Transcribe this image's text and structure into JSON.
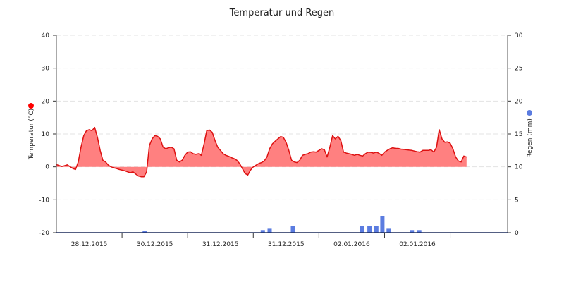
{
  "chart_data": {
    "type": "line",
    "title": "Temperatur und Regen",
    "y_left": {
      "label": "Temperatur (°C)",
      "ticks": [
        40,
        30,
        20,
        10,
        0,
        -10,
        -20
      ],
      "range": [
        -20,
        40
      ],
      "marker_color": "#ff0000"
    },
    "y_right": {
      "label": "Regen (mm)",
      "ticks": [
        30,
        25,
        20,
        15,
        10,
        5,
        0
      ],
      "range": [
        0,
        30
      ],
      "marker_color": "#5b7ce0"
    },
    "x": {
      "range_hours": [
        0,
        165
      ],
      "tick_labels": [
        "28.12.2015",
        "30.12.2015",
        "31.12.2015",
        "31.12.2015",
        "02.01.2016",
        "02.01.2016"
      ],
      "tick_positions_hours": [
        12,
        36,
        60,
        84,
        108,
        132
      ],
      "separator_positions_hours": [
        24,
        48,
        72,
        96,
        120,
        144
      ]
    },
    "grid": "horizontal dashed",
    "series": [
      {
        "name": "Temperatur (°C)",
        "kind": "area",
        "color": "#dd1111",
        "fill": "#ff8080",
        "points": [
          [
            0,
            0.7
          ],
          [
            2,
            0.1
          ],
          [
            4,
            0.6
          ],
          [
            6,
            -0.5
          ],
          [
            7,
            -0.8
          ],
          [
            8,
            1.5
          ],
          [
            9,
            6
          ],
          [
            10,
            9.5
          ],
          [
            11,
            11
          ],
          [
            12,
            11.3
          ],
          [
            13,
            11
          ],
          [
            14,
            12
          ],
          [
            15,
            9
          ],
          [
            16,
            5
          ],
          [
            17,
            2
          ],
          [
            18,
            1.5
          ],
          [
            19,
            0.5
          ],
          [
            20,
            0
          ],
          [
            21,
            -0.3
          ],
          [
            22,
            -0.5
          ],
          [
            23,
            -0.8
          ],
          [
            24,
            -1
          ],
          [
            25,
            -1.2
          ],
          [
            26,
            -1.5
          ],
          [
            27,
            -1.8
          ],
          [
            28,
            -1.5
          ],
          [
            29,
            -2.2
          ],
          [
            30,
            -2.8
          ],
          [
            31,
            -3
          ],
          [
            32,
            -3
          ],
          [
            33,
            -1.5
          ],
          [
            34,
            6.5
          ],
          [
            35,
            8.5
          ],
          [
            36,
            9.5
          ],
          [
            37,
            9.3
          ],
          [
            38,
            8.5
          ],
          [
            39,
            6
          ],
          [
            40,
            5.5
          ],
          [
            41,
            5.8
          ],
          [
            42,
            6
          ],
          [
            43,
            5.5
          ],
          [
            44,
            2
          ],
          [
            45,
            1.5
          ],
          [
            46,
            2
          ],
          [
            47,
            3.5
          ],
          [
            48,
            4.5
          ],
          [
            49,
            4.6
          ],
          [
            50,
            4
          ],
          [
            51,
            3.8
          ],
          [
            52,
            4
          ],
          [
            53,
            3.5
          ],
          [
            54,
            7
          ],
          [
            55,
            11
          ],
          [
            56,
            11.2
          ],
          [
            57,
            10.5
          ],
          [
            58,
            8
          ],
          [
            59,
            6
          ],
          [
            60,
            5
          ],
          [
            61,
            4
          ],
          [
            62,
            3.5
          ],
          [
            63,
            3.2
          ],
          [
            64,
            2.8
          ],
          [
            65,
            2.5
          ],
          [
            66,
            2
          ],
          [
            67,
            1
          ],
          [
            68,
            -0.5
          ],
          [
            69,
            -2
          ],
          [
            70,
            -2.5
          ],
          [
            71,
            -1
          ],
          [
            72,
            0
          ],
          [
            73,
            0.5
          ],
          [
            74,
            1
          ],
          [
            75,
            1.3
          ],
          [
            76,
            1.8
          ],
          [
            77,
            3
          ],
          [
            78,
            5.5
          ],
          [
            79,
            7
          ],
          [
            80,
            7.8
          ],
          [
            81,
            8.5
          ],
          [
            82,
            9.2
          ],
          [
            83,
            9
          ],
          [
            84,
            7.5
          ],
          [
            85,
            5
          ],
          [
            86,
            2
          ],
          [
            87,
            1.5
          ],
          [
            88,
            1.3
          ],
          [
            89,
            2
          ],
          [
            90,
            3.5
          ],
          [
            91,
            3.8
          ],
          [
            92,
            4
          ],
          [
            93,
            4.5
          ],
          [
            94,
            4.6
          ],
          [
            95,
            4.5
          ],
          [
            96,
            5
          ],
          [
            97,
            5.5
          ],
          [
            98,
            5.2
          ],
          [
            99,
            3
          ],
          [
            100,
            6
          ],
          [
            101,
            9.5
          ],
          [
            102,
            8.5
          ],
          [
            103,
            9.3
          ],
          [
            104,
            8
          ],
          [
            105,
            4.5
          ],
          [
            106,
            4.2
          ],
          [
            107,
            4
          ],
          [
            108,
            3.8
          ],
          [
            109,
            3.5
          ],
          [
            110,
            3.8
          ],
          [
            111,
            3.5
          ],
          [
            112,
            3.3
          ],
          [
            113,
            4
          ],
          [
            114,
            4.5
          ],
          [
            115,
            4.4
          ],
          [
            116,
            4.2
          ],
          [
            117,
            4.5
          ],
          [
            118,
            4.1
          ],
          [
            119,
            3.5
          ],
          [
            120,
            4.5
          ],
          [
            121,
            5
          ],
          [
            122,
            5.5
          ],
          [
            123,
            5.8
          ],
          [
            124,
            5.6
          ],
          [
            125,
            5.6
          ],
          [
            126,
            5.4
          ],
          [
            127,
            5.3
          ],
          [
            128,
            5.2
          ],
          [
            129,
            5.1
          ],
          [
            130,
            5
          ],
          [
            131,
            4.8
          ],
          [
            132,
            4.6
          ],
          [
            133,
            4.5
          ],
          [
            134,
            5
          ],
          [
            135,
            5
          ],
          [
            136,
            5
          ],
          [
            137,
            5.2
          ],
          [
            138,
            4.5
          ],
          [
            139,
            6
          ],
          [
            140,
            11.3
          ],
          [
            141,
            8.5
          ],
          [
            142,
            7.5
          ],
          [
            143,
            7.6
          ],
          [
            144,
            7.2
          ],
          [
            145,
            5.5
          ],
          [
            146,
            3
          ],
          [
            147,
            1.8
          ],
          [
            148,
            1.5
          ],
          [
            149,
            3.3
          ],
          [
            150,
            3
          ]
        ]
      },
      {
        "name": "Regen (mm)",
        "kind": "bar",
        "axis": "right",
        "color": "#5b7ce0",
        "points": [
          [
            32.3,
            0.3
          ],
          [
            75.5,
            0.4
          ],
          [
            78,
            0.6
          ],
          [
            86.5,
            1
          ],
          [
            111.8,
            1
          ],
          [
            114.5,
            1
          ],
          [
            117,
            1
          ],
          [
            119.2,
            2.5
          ],
          [
            121.5,
            0.6
          ],
          [
            130,
            0.4
          ],
          [
            132.7,
            0.4
          ]
        ]
      }
    ]
  }
}
